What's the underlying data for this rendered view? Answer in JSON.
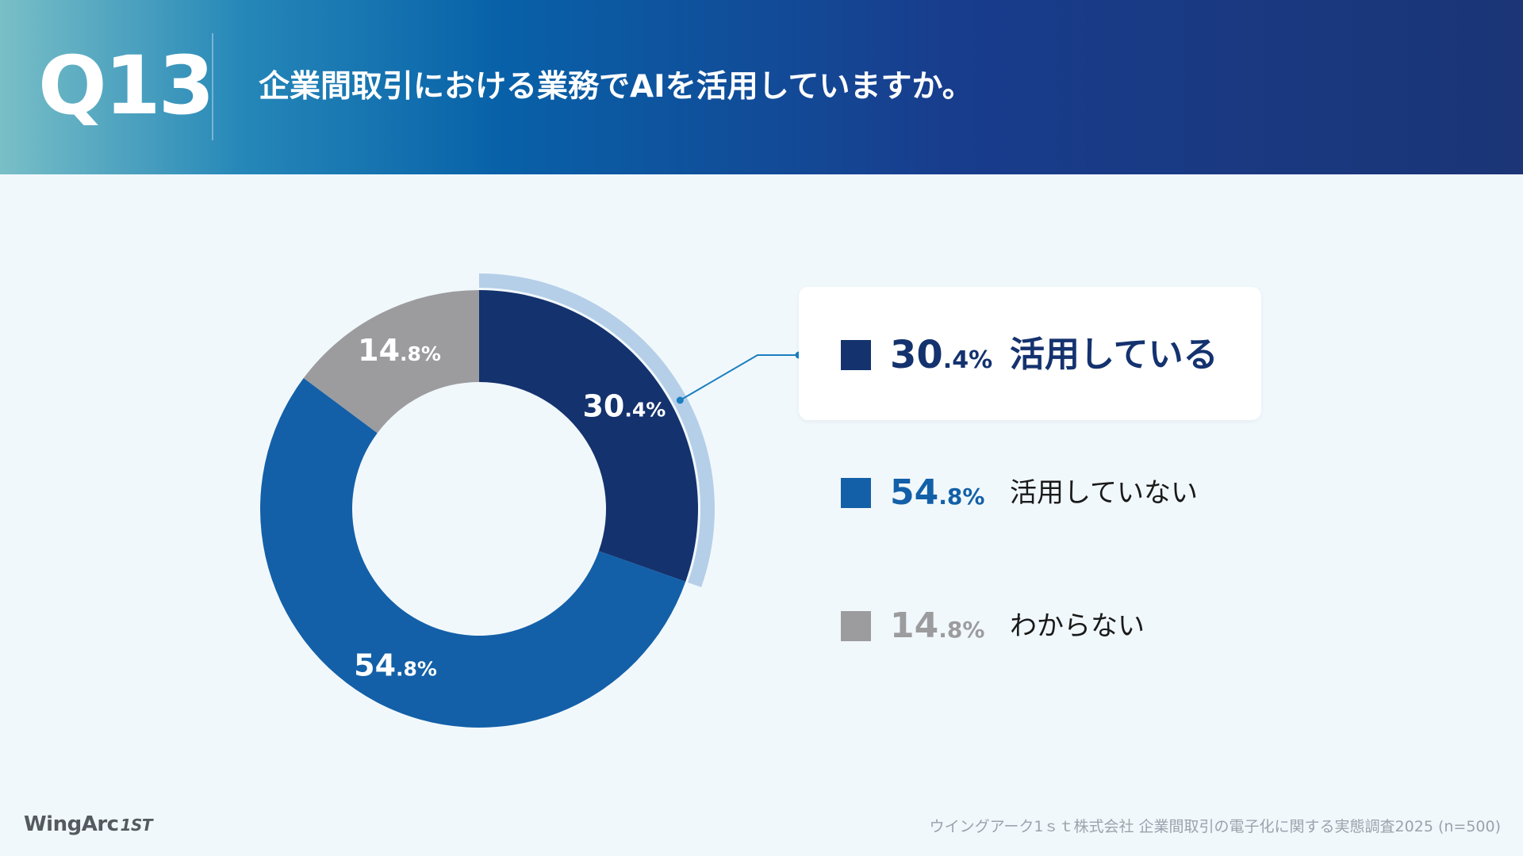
{
  "header": {
    "question_number": "Q13",
    "question": "企業間取引における業務でAIを活用していますか。"
  },
  "chart_data": {
    "type": "pie",
    "variant": "donut",
    "highlighted_index": 0,
    "series": [
      {
        "label": "活用している",
        "value": 30.4,
        "int": "30",
        "dec": ".4",
        "unit": "%",
        "color": "#14326e"
      },
      {
        "label": "活用していない",
        "value": 54.8,
        "int": "54",
        "dec": ".8",
        "unit": "%",
        "color": "#1360a8"
      },
      {
        "label": "わからない",
        "value": 14.8,
        "int": "14",
        "dec": ".8",
        "unit": "%",
        "color": "#9c9c9e"
      }
    ],
    "highlight_ring_color": "#b5cfe8",
    "legend_position": "right"
  },
  "footer": {
    "logo_main": "WingArc",
    "logo_suffix": "1ST",
    "source": "ウイングアーク1ｓｔ株式会社 企業間取引の電子化に関する実態調査2025 (n=500)"
  }
}
